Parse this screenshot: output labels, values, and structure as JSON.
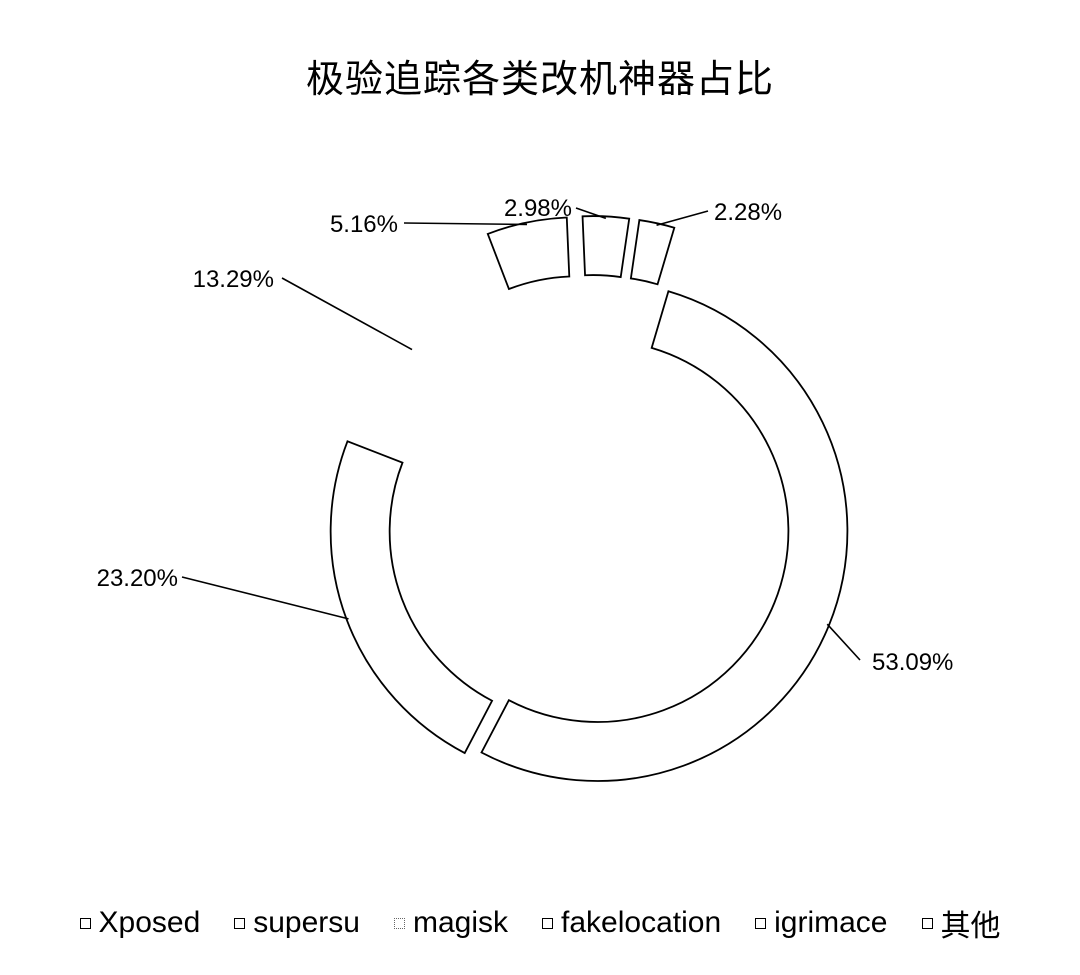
{
  "chart_data": {
    "type": "pie",
    "style": "donut",
    "title": "极验追踪各类改机神器占比",
    "categories": [
      "Xposed",
      "supersu",
      "magisk",
      "fakelocation",
      "igrimace",
      "其他"
    ],
    "values": [
      53.09,
      23.2,
      13.29,
      5.16,
      2.98,
      2.28
    ],
    "data_labels": [
      "53.09%",
      "23.20%",
      "13.29%",
      "5.16%",
      "2.98%",
      "2.28%"
    ],
    "legend": {
      "position": "bottom",
      "entries": [
        "Xposed",
        "supersu",
        "magisk",
        "fakelocation",
        "igrimace",
        "其他"
      ]
    },
    "colors": {
      "fill": "#ffffff",
      "stroke": "#000000"
    }
  }
}
